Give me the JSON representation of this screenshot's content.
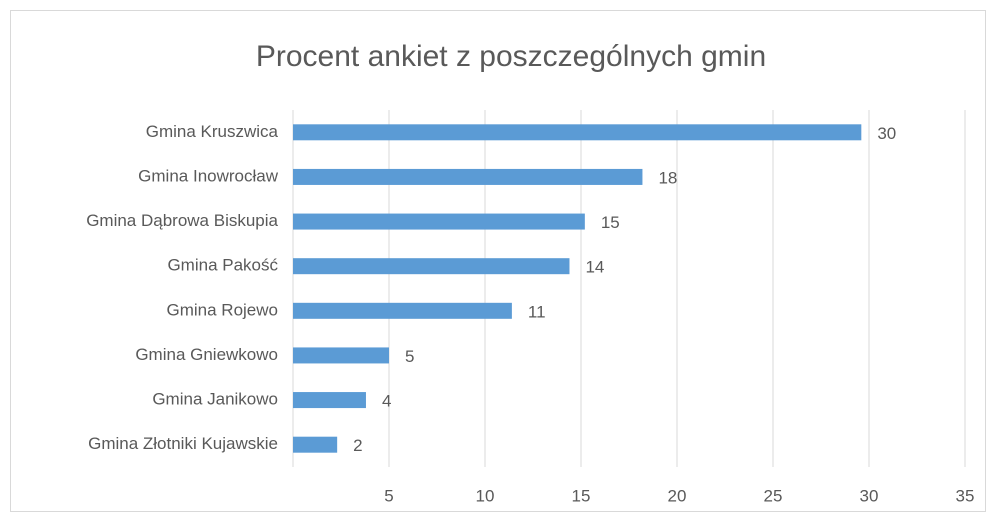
{
  "chart_data": {
    "type": "barh",
    "title": "Procent ankiet z poszczególnych gmin",
    "categories": [
      "Gmina Kruszwica",
      "Gmina Inowrocław",
      "Gmina Dąbrowa Biskupia",
      "Gmina Pakość",
      "Gmina Rojewo",
      "Gmina Gniewkowo",
      "Gmina Janikowo",
      "Gmina Złotniki Kujawskie"
    ],
    "values": [
      29.6,
      18.2,
      15.2,
      14.4,
      11.4,
      5.0,
      3.8,
      2.3
    ],
    "value_labels": [
      "30",
      "18",
      "15",
      "14",
      "11",
      "5",
      "4",
      "2"
    ],
    "color": "#5b9bd5",
    "xlim": [
      0,
      35
    ],
    "xticks": [
      5,
      10,
      15,
      20,
      25,
      30,
      35
    ],
    "grid": true
  }
}
